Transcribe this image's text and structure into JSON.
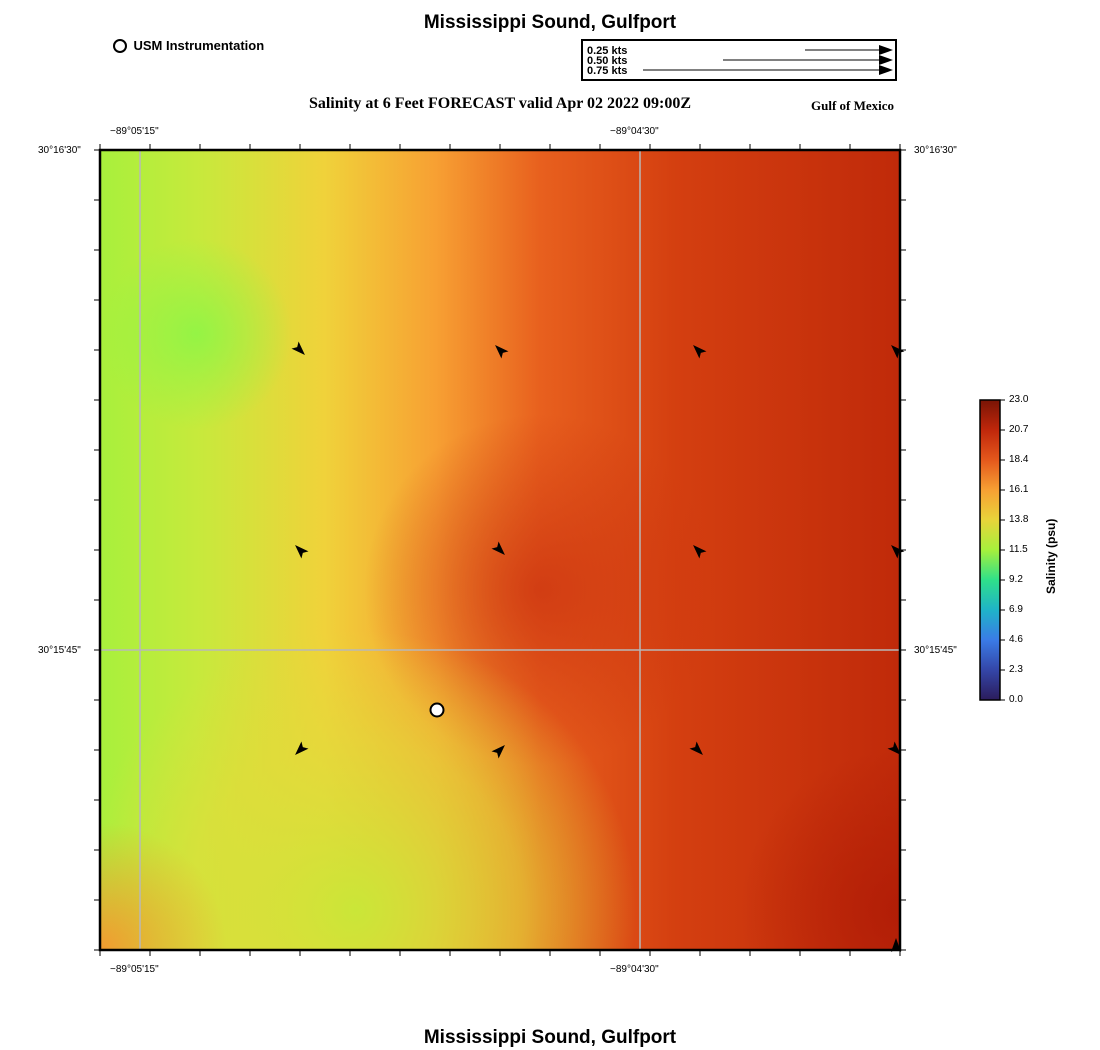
{
  "header": {
    "title": "Mississippi Sound, Gulfport",
    "subtitle": "Salinity at 6 Feet FORECAST valid Apr 02 2022 09:00Z",
    "region": "Gulf of Mexico",
    "usm_legend": "USM Instrumentation"
  },
  "footer": {
    "title": "Mississippi Sound, Gulfport"
  },
  "vector_legend": {
    "entries": [
      {
        "label": "0.25 kts",
        "speed_kts": 0.25
      },
      {
        "label": "0.50 kts",
        "speed_kts": 0.5
      },
      {
        "label": "0.75 kts",
        "speed_kts": 0.75
      }
    ]
  },
  "axes": {
    "lon_ticks": [
      "−89°05'15\"",
      "−89°04'30\""
    ],
    "lat_ticks": [
      "30°16'30\"",
      "30°15'45\""
    ]
  },
  "colorbar": {
    "label": "Salinity (psu)",
    "ticks": [
      "23.0",
      "20.7",
      "18.4",
      "16.1",
      "13.8",
      "11.5",
      "9.2",
      "6.9",
      "4.6",
      "2.3",
      "0.0"
    ],
    "range": [
      0.0,
      23.0
    ],
    "colors": [
      "#2b1c5c",
      "#3a62d6",
      "#1fb3c8",
      "#2fe08a",
      "#a6f03c",
      "#e8d43a",
      "#f7a033",
      "#e4581c",
      "#c0270b",
      "#7a1405"
    ]
  },
  "chart_data": {
    "type": "heatmap",
    "variable": "Salinity",
    "units": "psu",
    "vectors": [
      {
        "row": 1,
        "col": 1,
        "dir": "SE"
      },
      {
        "row": 1,
        "col": 2,
        "dir": "NW"
      },
      {
        "row": 1,
        "col": 3,
        "dir": "NW"
      },
      {
        "row": 1,
        "col": 4,
        "dir": "NW"
      },
      {
        "row": 2,
        "col": 1,
        "dir": "NW"
      },
      {
        "row": 2,
        "col": 2,
        "dir": "SE"
      },
      {
        "row": 2,
        "col": 3,
        "dir": "NW"
      },
      {
        "row": 2,
        "col": 4,
        "dir": "NW"
      },
      {
        "row": 3,
        "col": 1,
        "dir": "SW"
      },
      {
        "row": 3,
        "col": 2,
        "dir": "NE"
      },
      {
        "row": 3,
        "col": 3,
        "dir": "SE"
      },
      {
        "row": 3,
        "col": 4,
        "dir": "SE"
      },
      {
        "row": 4,
        "col": 4,
        "dir": "N"
      }
    ]
  }
}
